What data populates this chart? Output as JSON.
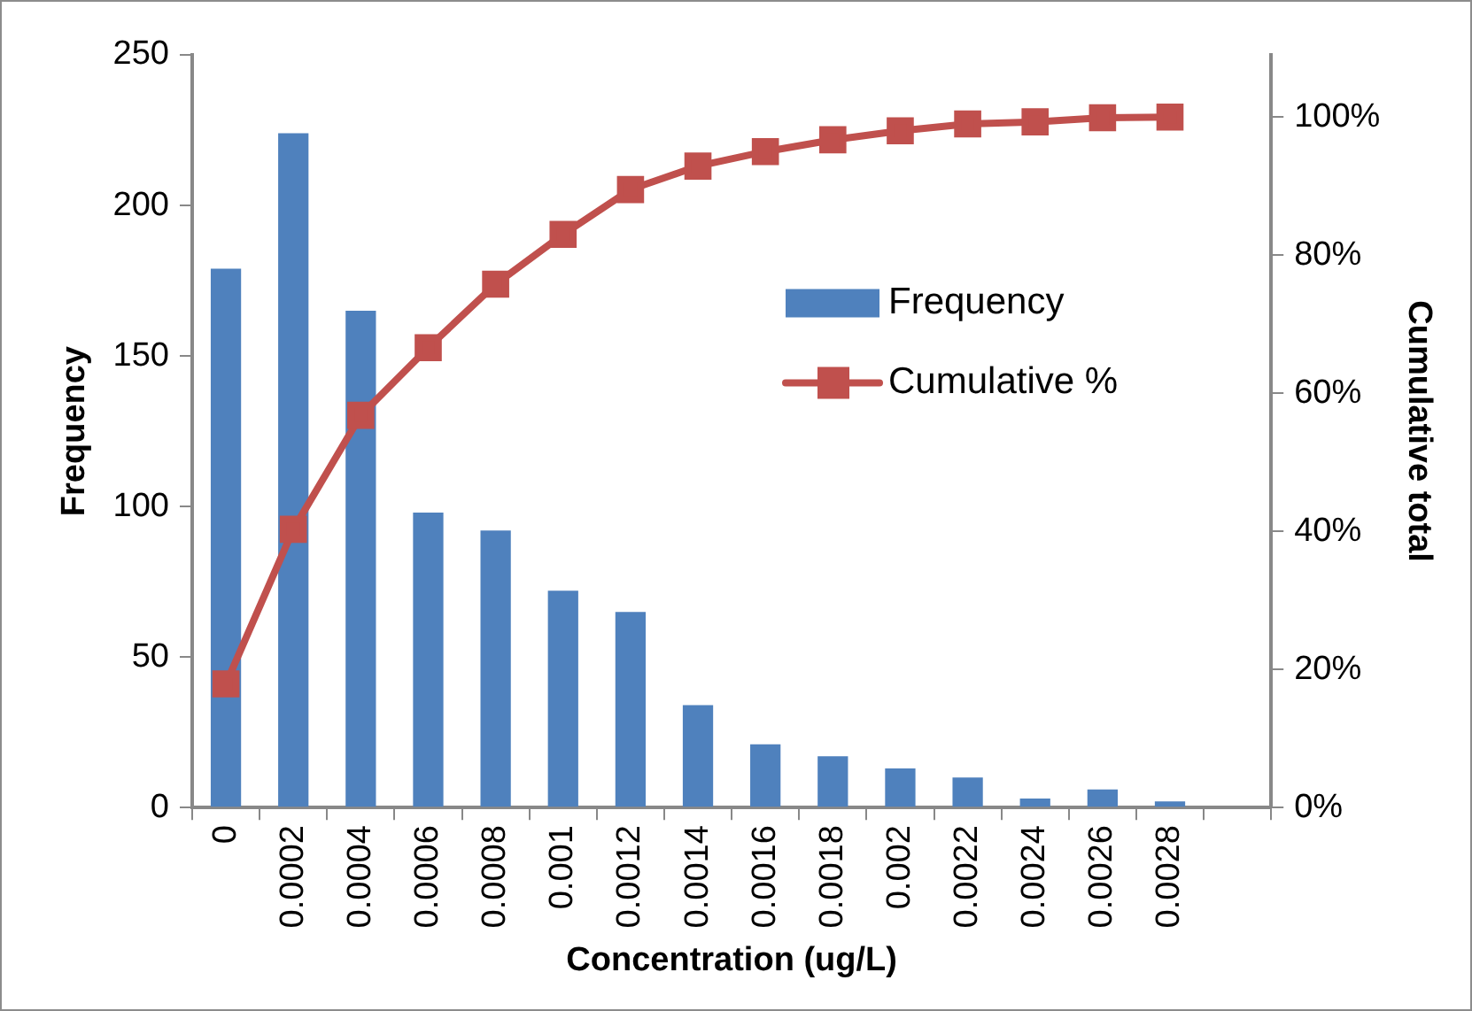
{
  "chart_data": {
    "type": "bar",
    "xlabel": "Concentration (ug/L)",
    "ylabel": "Frequency",
    "y2label": "Cumulative total",
    "categories": [
      "0",
      "0.0002",
      "0.0004",
      "0.0006",
      "0.0008",
      "0.001",
      "0.0012",
      "0.0014",
      "0.0016",
      "0.0018",
      "0.002",
      "0.0022",
      "0.0024",
      "0.0026",
      "0.0028",
      null
    ],
    "series": [
      {
        "name": "Frequency",
        "color": "#4f81bd",
        "values": [
          179,
          224,
          165,
          98,
          92,
          72,
          65,
          34,
          21,
          17,
          13,
          10,
          3,
          6,
          2,
          null
        ]
      },
      {
        "name": "Cumulative %",
        "type": "line",
        "axis": "y2",
        "color": "#c0504d",
        "marker": "square",
        "values": [
          17.9,
          40.3,
          56.8,
          66.6,
          75.8,
          83.0,
          89.5,
          92.9,
          95.0,
          96.7,
          98.0,
          99.0,
          99.3,
          99.9,
          100,
          null
        ]
      }
    ],
    "ylim": [
      0,
      250
    ],
    "yticks": [
      0,
      50,
      100,
      150,
      200,
      250
    ],
    "y2lim": [
      0,
      109
    ],
    "y2ticks": [
      {
        "value": 0,
        "label": "0%"
      },
      {
        "value": 20,
        "label": "20%"
      },
      {
        "value": 40,
        "label": "40%"
      },
      {
        "value": 60,
        "label": "60%"
      },
      {
        "value": 80,
        "label": "80%"
      },
      {
        "value": 100,
        "label": "100%"
      }
    ],
    "grid": false,
    "legend": "right"
  }
}
